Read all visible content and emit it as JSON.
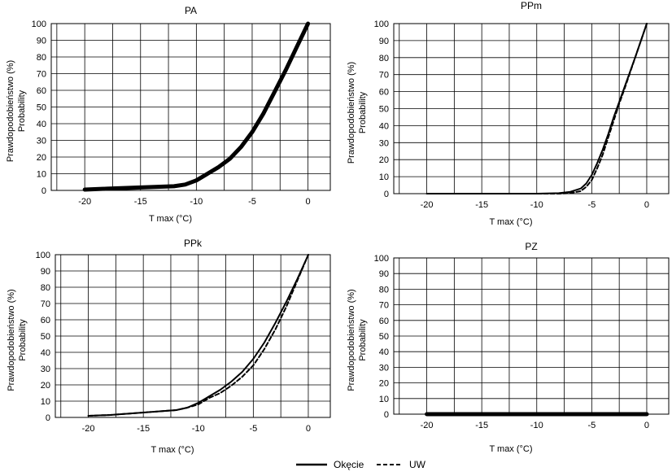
{
  "y_label_line1": "Prawdopodobieństwo (%)",
  "y_label_line2": "Probability",
  "legend": [
    {
      "name": "Okęcie",
      "style": "solid"
    },
    {
      "name": "UW",
      "style": "dashed"
    }
  ],
  "colors": {
    "line": "#000000",
    "grid": "#000000",
    "background": "#ffffff"
  },
  "chart_data": [
    {
      "type": "line",
      "title": "PA",
      "xlabel": "T max (°C)",
      "ylabel": "Prawdopodobieństwo (%) Probability",
      "xlim": [
        -23,
        2
      ],
      "ylim": [
        0,
        100
      ],
      "xticks": [
        -20,
        -15,
        -10,
        -5,
        0
      ],
      "yticks": [
        0,
        10,
        20,
        30,
        40,
        50,
        60,
        70,
        80,
        90,
        100
      ],
      "grid": true,
      "series": [
        {
          "name": "Okęcie",
          "style": "solid",
          "bold": true,
          "x": [
            -20,
            -18,
            -16,
            -14,
            -12,
            -11,
            -10,
            -9,
            -8,
            -7,
            -6,
            -5,
            -4,
            -3,
            -2,
            -1,
            0
          ],
          "y": [
            0.5,
            1,
            1.5,
            2,
            2.5,
            3.5,
            6,
            10,
            14,
            19,
            26,
            35,
            46,
            59,
            72,
            86,
            100
          ]
        }
      ]
    },
    {
      "type": "line",
      "title": "PPm",
      "xlabel": "T max (°C)",
      "ylabel": "Prawdopodobieństwo (%) Probability",
      "xlim": [
        -23,
        2
      ],
      "ylim": [
        0,
        100
      ],
      "xticks": [
        -20,
        -15,
        -10,
        -5,
        0
      ],
      "yticks": [
        0,
        10,
        20,
        30,
        40,
        50,
        60,
        70,
        80,
        90,
        100
      ],
      "grid": true,
      "series": [
        {
          "name": "Okęcie",
          "style": "solid",
          "x": [
            -20,
            -15,
            -10,
            -8,
            -7,
            -6,
            -5.5,
            -5,
            -4.5,
            -4,
            -3.5,
            -3,
            -2.5,
            -2,
            -1,
            0
          ],
          "y": [
            0,
            0,
            0,
            0.3,
            1,
            3,
            6,
            11,
            18,
            26,
            35,
            45,
            54,
            63,
            81,
            100
          ]
        },
        {
          "name": "UW",
          "style": "dashed",
          "x": [
            -20,
            -15,
            -10,
            -8,
            -7,
            -6,
            -5.5,
            -5,
            -4.5,
            -4,
            -3.5,
            -3,
            -2.5,
            -2,
            -1,
            0
          ],
          "y": [
            0,
            0,
            0,
            0,
            0.3,
            1.5,
            4,
            8,
            15,
            23,
            33,
            43,
            53,
            62,
            81,
            100
          ]
        }
      ]
    },
    {
      "type": "line",
      "title": "PPk",
      "xlabel": "T max (°C)",
      "ylabel": "Prawdopodobieństwo (%) Probability",
      "xlim": [
        -23,
        2
      ],
      "ylim": [
        0,
        100
      ],
      "xticks": [
        -20,
        -15,
        -10,
        -5,
        0
      ],
      "yticks": [
        0,
        10,
        20,
        30,
        40,
        50,
        60,
        70,
        80,
        90,
        100
      ],
      "grid": true,
      "series": [
        {
          "name": "Okęcie",
          "style": "solid",
          "x": [
            -20,
            -18,
            -16,
            -14,
            -12,
            -11,
            -10,
            -9,
            -8,
            -7,
            -6,
            -5,
            -4,
            -3,
            -2,
            -1,
            0
          ],
          "y": [
            1,
            1.5,
            2.5,
            3.5,
            4.5,
            6,
            9,
            13,
            17,
            22,
            28,
            36,
            46,
            58,
            71,
            85,
            100
          ]
        },
        {
          "name": "UW",
          "style": "dashed",
          "x": [
            -20,
            -18,
            -16,
            -14,
            -12,
            -11,
            -10,
            -9,
            -8,
            -7,
            -6,
            -5,
            -4,
            -3,
            -2,
            -1,
            0
          ],
          "y": [
            1,
            1.5,
            2.5,
            3.5,
            4.5,
            6,
            8,
            12,
            15,
            19.5,
            25,
            32,
            42,
            54,
            68,
            84,
            100
          ]
        }
      ]
    },
    {
      "type": "line",
      "title": "PZ",
      "xlabel": "T max (°C)",
      "ylabel": "Prawdopodobieństwo (%) Probability",
      "xlim": [
        -23,
        2
      ],
      "ylim": [
        0,
        100
      ],
      "xticks": [
        -20,
        -15,
        -10,
        -5,
        0
      ],
      "yticks": [
        0,
        10,
        20,
        30,
        40,
        50,
        60,
        70,
        80,
        90,
        100
      ],
      "grid": true,
      "series": [
        {
          "name": "Okęcie",
          "style": "solid",
          "bold": true,
          "x": [
            -20,
            -15,
            -10,
            -5,
            0
          ],
          "y": [
            0,
            0,
            0,
            0,
            0
          ]
        }
      ]
    }
  ]
}
